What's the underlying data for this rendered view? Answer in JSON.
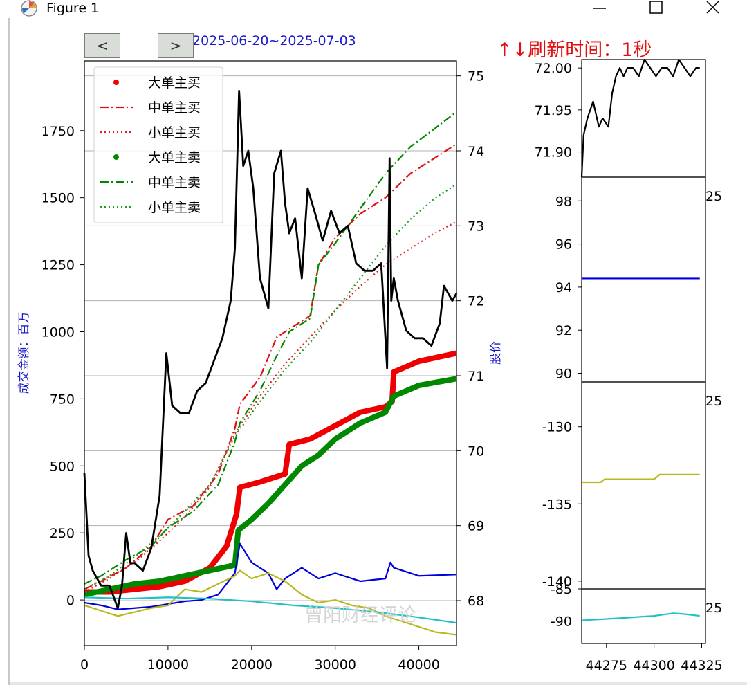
{
  "window": {
    "title": "Figure 1",
    "icon": "matplotlib-icon",
    "controls": [
      "minimize-icon",
      "maximize-icon",
      "close-icon"
    ]
  },
  "toolbar": {
    "prev_label": "<",
    "next_label": ">",
    "period_prefix": "",
    "period_range": "2025-06-20~2025-07-03"
  },
  "refresh_text": "↑↓刷新时间：1秒",
  "watermark": "曾阳财经评论",
  "colors": {
    "big_buy": "#ee0000",
    "big_sell": "#008800",
    "mid_buy": "#dd1111",
    "small_buy": "#dd2222",
    "mid_sell": "#008800",
    "small_sell": "#229922",
    "price": "#000000",
    "blue": "#0000dd",
    "olive": "#b8b820",
    "cyan": "#20c0c8"
  },
  "chart_data": [
    {
      "type": "line",
      "ylabel_left": "成交金额：百万",
      "ylabel_right": "股价",
      "xlim": [
        0,
        44500
      ],
      "ylim_left": [
        -170,
        2010
      ],
      "ylim_right": [
        67.4,
        75.2
      ],
      "grid": true,
      "legend_position": "top-left",
      "x_ticks": [
        "0",
        "10000",
        "20000",
        "30000",
        "40000"
      ],
      "y_ticks_left": [
        "0",
        "250",
        "500",
        "750",
        "1000",
        "1250",
        "1500",
        "1750"
      ],
      "y_ticks_right": [
        "68",
        "69",
        "70",
        "71",
        "72",
        "73",
        "74",
        "75"
      ],
      "legend": [
        {
          "label": "大单主买",
          "style": "dot",
          "color": "#ee0000"
        },
        {
          "label": "中单主买",
          "style": "dashdot",
          "color": "#dd1111"
        },
        {
          "label": "小单主买",
          "style": "dotted",
          "color": "#dd2222"
        },
        {
          "label": "大单主卖",
          "style": "dot",
          "color": "#008800"
        },
        {
          "label": "中单主卖",
          "style": "dashdot",
          "color": "#008800"
        },
        {
          "label": "小单主卖",
          "style": "dotted",
          "color": "#229922"
        }
      ],
      "series": [
        {
          "name": "大单主买",
          "axis": "left",
          "style": "thick",
          "color": "#ee0000",
          "x": [
            0,
            3000,
            6000,
            9000,
            12000,
            15000,
            17000,
            18200,
            18600,
            21000,
            24000,
            24500,
            27000,
            30000,
            33000,
            36000,
            36800,
            37000,
            40000,
            44500
          ],
          "y": [
            30,
            30,
            40,
            50,
            70,
            120,
            200,
            320,
            420,
            440,
            470,
            580,
            600,
            650,
            700,
            720,
            740,
            850,
            890,
            920
          ]
        },
        {
          "name": "大单主卖",
          "axis": "left",
          "style": "thick",
          "color": "#008800",
          "x": [
            0,
            3000,
            6000,
            9000,
            12000,
            15000,
            18000,
            18400,
            20000,
            22000,
            24000,
            26000,
            28000,
            30000,
            33000,
            36000,
            37000,
            40000,
            44500
          ],
          "y": [
            20,
            40,
            60,
            70,
            90,
            110,
            130,
            260,
            300,
            360,
            430,
            500,
            540,
            600,
            660,
            700,
            760,
            800,
            825
          ]
        },
        {
          "name": "中单主买",
          "axis": "left",
          "style": "dashdot",
          "color": "#dd1111",
          "x": [
            0,
            2000,
            5000,
            8000,
            10000,
            13000,
            16000,
            18000,
            18600,
            21000,
            23000,
            24500,
            26000,
            27000,
            28000,
            30000,
            33000,
            36000,
            39000,
            42000,
            44500
          ],
          "y": [
            40,
            70,
            120,
            200,
            300,
            350,
            470,
            640,
            730,
            830,
            980,
            1010,
            1040,
            1060,
            1250,
            1350,
            1440,
            1500,
            1590,
            1650,
            1700
          ]
        },
        {
          "name": "小单主买",
          "axis": "left",
          "style": "dotted",
          "color": "#dd2222",
          "x": [
            0,
            3000,
            6000,
            9000,
            12000,
            15000,
            18000,
            21000,
            24000,
            27000,
            30000,
            33000,
            36000,
            39000,
            42000,
            44500
          ],
          "y": [
            30,
            80,
            140,
            220,
            310,
            420,
            620,
            760,
            880,
            980,
            1080,
            1170,
            1250,
            1310,
            1370,
            1410
          ]
        },
        {
          "name": "中单主卖",
          "axis": "left",
          "style": "dashdot",
          "color": "#008800",
          "x": [
            0,
            2000,
            5000,
            8000,
            10000,
            13000,
            16000,
            18000,
            18600,
            21000,
            23000,
            24500,
            26000,
            27000,
            28000,
            30000,
            33000,
            36000,
            39000,
            42000,
            44500
          ],
          "y": [
            60,
            90,
            150,
            200,
            270,
            330,
            430,
            590,
            660,
            780,
            910,
            1000,
            1030,
            1050,
            1250,
            1330,
            1460,
            1590,
            1690,
            1760,
            1820
          ]
        },
        {
          "name": "小单主卖",
          "axis": "left",
          "style": "dotted",
          "color": "#229922",
          "x": [
            0,
            3000,
            6000,
            9000,
            12000,
            15000,
            18000,
            21000,
            24000,
            27000,
            30000,
            33000,
            36000,
            39000,
            42000,
            44500
          ],
          "y": [
            40,
            90,
            160,
            240,
            330,
            430,
            610,
            740,
            860,
            960,
            1080,
            1200,
            1320,
            1420,
            1500,
            1550
          ]
        },
        {
          "name": "",
          "axis": "left",
          "style": "solid",
          "color": "#0000dd",
          "x": [
            0,
            2000,
            4000,
            6000,
            8000,
            10000,
            12000,
            14000,
            16000,
            18000,
            18600,
            20000,
            22000,
            23000,
            24000,
            26000,
            28000,
            30000,
            33000,
            36000,
            36600,
            37000,
            40000,
            44500
          ],
          "y": [
            -10,
            -20,
            -35,
            -30,
            -25,
            -15,
            -5,
            0,
            20,
            100,
            210,
            140,
            100,
            40,
            80,
            120,
            80,
            100,
            70,
            80,
            140,
            120,
            90,
            95
          ]
        },
        {
          "name": "",
          "axis": "left",
          "style": "solid",
          "color": "#b8b820",
          "x": [
            0,
            2000,
            4000,
            6000,
            8000,
            10000,
            12000,
            14000,
            16000,
            18000,
            18600,
            20000,
            22000,
            24000,
            26000,
            28000,
            30000,
            32000,
            34000,
            36000,
            38000,
            40000,
            42000,
            44500
          ],
          "y": [
            -20,
            -40,
            -60,
            -45,
            -30,
            -20,
            40,
            30,
            60,
            90,
            110,
            80,
            100,
            70,
            20,
            -10,
            0,
            -20,
            -30,
            -60,
            -80,
            -100,
            -120,
            -130
          ]
        },
        {
          "name": "",
          "axis": "left",
          "style": "solid",
          "color": "#20c0c8",
          "x": [
            0,
            5000,
            10000,
            15000,
            20000,
            25000,
            30000,
            35000,
            40000,
            44500
          ],
          "y": [
            10,
            5,
            10,
            5,
            -5,
            -20,
            -30,
            -45,
            -65,
            -85
          ]
        },
        {
          "name": "股价",
          "axis": "right",
          "style": "solid-bold",
          "color": "#000000",
          "x": [
            0,
            500,
            1000,
            2000,
            3000,
            4000,
            4500,
            5000,
            5500,
            6000,
            7000,
            8000,
            9000,
            9800,
            10500,
            11500,
            12500,
            13500,
            14500,
            15500,
            16500,
            17500,
            18000,
            18500,
            19000,
            19600,
            20200,
            21000,
            22000,
            22700,
            23500,
            24000,
            24500,
            25200,
            26000,
            26700,
            27500,
            28500,
            29500,
            30500,
            31500,
            32500,
            33500,
            34500,
            35500,
            36200,
            36500,
            36700,
            37000,
            37500,
            38000,
            38500,
            39500,
            40500,
            41500,
            42500,
            43000,
            44000,
            44500
          ],
          "y": [
            69.7,
            68.6,
            68.4,
            68.2,
            68.2,
            67.9,
            68.2,
            68.9,
            68.5,
            68.5,
            68.4,
            68.7,
            69.4,
            71.3,
            70.6,
            70.5,
            70.5,
            70.8,
            70.9,
            71.2,
            71.5,
            72.0,
            72.7,
            74.8,
            73.8,
            74.0,
            73.5,
            72.3,
            71.9,
            73.7,
            74.0,
            73.3,
            72.9,
            73.1,
            72.3,
            73.5,
            73.2,
            72.8,
            73.2,
            72.9,
            73.0,
            72.5,
            72.4,
            72.4,
            72.5,
            71.1,
            73.9,
            72.0,
            72.3,
            72.0,
            71.8,
            71.6,
            71.5,
            71.5,
            71.4,
            71.7,
            72.2,
            72.0,
            72.1
          ]
        }
      ]
    },
    {
      "type": "line",
      "xlim": [
        44262,
        44327
      ],
      "ylim": [
        71.87,
        72.01
      ],
      "y_ticks": [
        "71.90",
        "71.95",
        "72.00"
      ],
      "series": [
        {
          "name": "",
          "color": "#000000",
          "x": [
            44262,
            44263,
            44265,
            44268,
            44271,
            44273,
            44276,
            44278,
            44280,
            44282,
            44284,
            44286,
            44289,
            44292,
            44295,
            44298,
            44301,
            44304,
            44307,
            44310,
            44313,
            44316,
            44319,
            44322,
            44324
          ],
          "y": [
            71.87,
            71.92,
            71.94,
            71.96,
            71.93,
            71.94,
            71.93,
            71.97,
            71.99,
            72.0,
            71.99,
            72.0,
            72.0,
            71.99,
            72.01,
            72.0,
            71.99,
            72.0,
            72.0,
            71.99,
            72.01,
            72.0,
            71.99,
            72.0,
            72.0
          ]
        }
      ]
    },
    {
      "type": "line",
      "ylim": [
        89.6,
        99.1
      ],
      "y_ticks": [
        "90",
        "92",
        "94",
        "96",
        "98"
      ],
      "right_tick_label": "25",
      "series": [
        {
          "name": "",
          "color": "#0000dd",
          "x": [
            44262,
            44324
          ],
          "y": [
            94.4,
            94.4
          ]
        }
      ]
    },
    {
      "type": "line",
      "ylim": [
        -140.5,
        -127.1
      ],
      "y_ticks": [
        "-130",
        "-135",
        "-140"
      ],
      "right_tick_label": "25",
      "series": [
        {
          "name": "",
          "color": "#b8b820",
          "x": [
            44262,
            44272,
            44274,
            44300,
            44303,
            44324
          ],
          "y": [
            -133.6,
            -133.6,
            -133.4,
            -133.4,
            -133.1,
            -133.1
          ]
        }
      ]
    },
    {
      "type": "line",
      "ylim": [
        -93.5,
        -85.0
      ],
      "y_ticks": [
        "-85",
        "-90"
      ],
      "right_tick_label": "25",
      "x_ticks": [
        "44275",
        "44300",
        "44325"
      ],
      "series": [
        {
          "name": "",
          "color": "#20c0c8",
          "x": [
            44262,
            44280,
            44300,
            44310,
            44315,
            44324
          ],
          "y": [
            -89.9,
            -89.6,
            -89.2,
            -88.8,
            -88.9,
            -89.2
          ]
        }
      ]
    }
  ]
}
